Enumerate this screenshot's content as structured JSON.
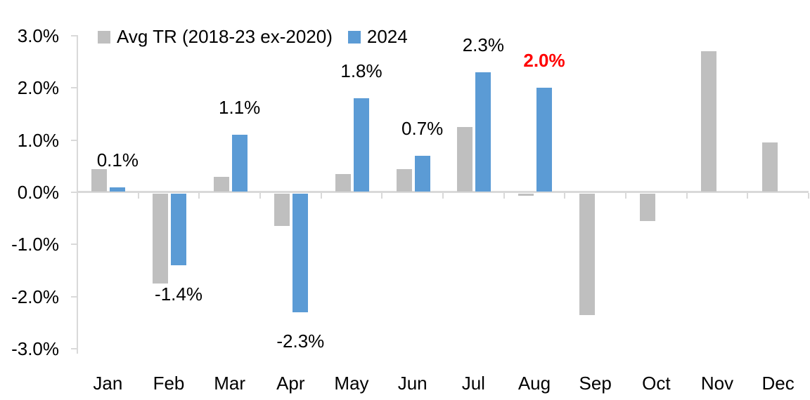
{
  "chart_data": {
    "type": "bar",
    "title": "",
    "xlabel": "",
    "ylabel": "",
    "categories": [
      "Jan",
      "Feb",
      "Mar",
      "Apr",
      "May",
      "Jun",
      "Jul",
      "Aug",
      "Sep",
      "Oct",
      "Nov",
      "Dec"
    ],
    "series": [
      {
        "name": "Avg TR (2018-23 ex-2020)",
        "color": "#BFBFBF",
        "values": [
          0.45,
          -1.75,
          0.3,
          -0.65,
          0.35,
          0.45,
          1.25,
          -0.05,
          -2.35,
          -0.55,
          2.7,
          0.95
        ],
        "labels": [
          null,
          null,
          null,
          null,
          null,
          null,
          null,
          null,
          null,
          null,
          null,
          null
        ]
      },
      {
        "name": "2024",
        "color": "#5B9BD5",
        "values": [
          0.1,
          -1.4,
          1.1,
          -2.3,
          1.8,
          0.7,
          2.3,
          2.0,
          null,
          null,
          null,
          null
        ],
        "labels": [
          {
            "text": "0.1%"
          },
          {
            "text": "-1.4%"
          },
          {
            "text": "1.1%"
          },
          {
            "text": "-2.3%"
          },
          {
            "text": "1.8%"
          },
          {
            "text": "0.7%"
          },
          {
            "text": "2.3%"
          },
          {
            "text": "2.0%",
            "color": "#FF0000",
            "bold": true
          },
          null,
          null,
          null,
          null
        ]
      }
    ],
    "y_axis": {
      "tick_labels": [
        "3.0%",
        "2.0%",
        "1.0%",
        "0.0%",
        "-1.0%",
        "-2.0%",
        "-3.0%"
      ],
      "tick_values": [
        3,
        2,
        1,
        0,
        -1,
        -2,
        -3
      ],
      "min": -3,
      "max": 3,
      "step": 1
    },
    "legend_position": "top",
    "grid": false,
    "axis_color": "#D9D9D9",
    "text_color": "#000000",
    "highlight_color": "#FF0000",
    "background": "#FFFFFF"
  }
}
